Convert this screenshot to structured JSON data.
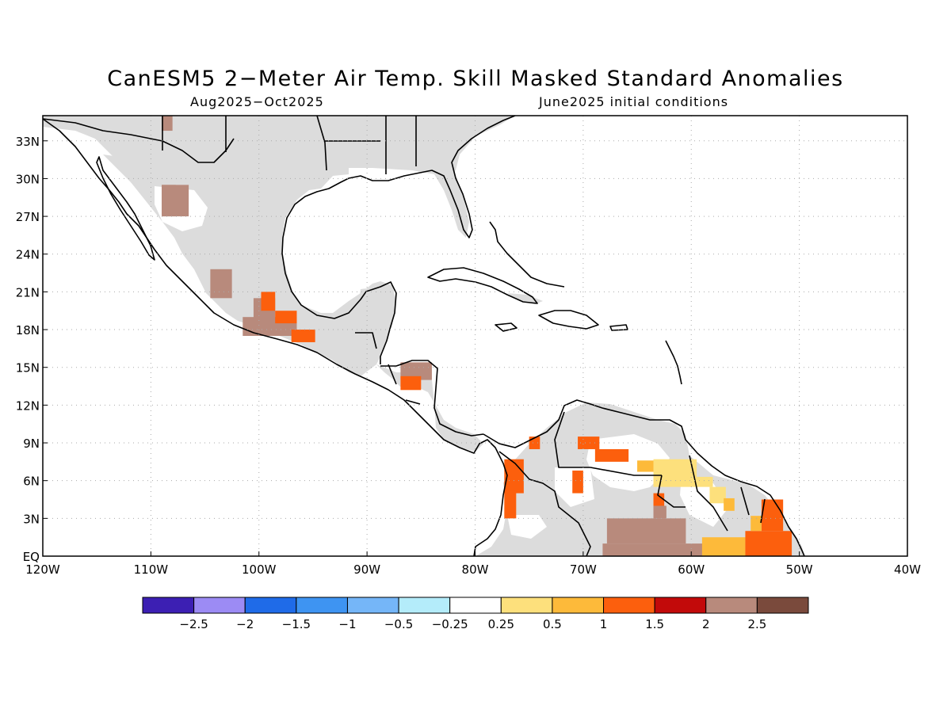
{
  "title": "CanESM5 2−Meter Air Temp. Skill Masked Standard Anomalies",
  "period": "Aug2025−Oct2025",
  "initial_conditions": "June2025 initial conditions",
  "map": {
    "lon_range": [
      -120,
      -40
    ],
    "lat_range": [
      0,
      35
    ],
    "lat_ticks": [
      {
        "value": 33,
        "label": "33N"
      },
      {
        "value": 30,
        "label": "30N"
      },
      {
        "value": 27,
        "label": "27N"
      },
      {
        "value": 24,
        "label": "24N"
      },
      {
        "value": 21,
        "label": "21N"
      },
      {
        "value": 18,
        "label": "18N"
      },
      {
        "value": 15,
        "label": "15N"
      },
      {
        "value": 12,
        "label": "12N"
      },
      {
        "value": 9,
        "label": "9N"
      },
      {
        "value": 6,
        "label": "6N"
      },
      {
        "value": 3,
        "label": "3N"
      },
      {
        "value": 0,
        "label": "EQ"
      }
    ],
    "lon_ticks": [
      {
        "value": -120,
        "label": "120W"
      },
      {
        "value": -110,
        "label": "110W"
      },
      {
        "value": -100,
        "label": "100W"
      },
      {
        "value": -90,
        "label": "90W"
      },
      {
        "value": -80,
        "label": "80W"
      },
      {
        "value": -70,
        "label": "70W"
      },
      {
        "value": -60,
        "label": "60W"
      },
      {
        "value": -50,
        "label": "50W"
      },
      {
        "value": -40,
        "label": "40W"
      }
    ],
    "masked_land_color": "#dcdcdc",
    "anomaly_patches": [
      {
        "lon": [
          -109,
          -108
        ],
        "lat": [
          33.8,
          35
        ],
        "value": 2.25
      },
      {
        "lon": [
          -109,
          -106.5
        ],
        "lat": [
          27,
          29.5
        ],
        "value": 2.0
      },
      {
        "lon": [
          -109,
          -107.7
        ],
        "lat": [
          27,
          29.5
        ],
        "value": 2.25
      },
      {
        "lon": [
          -104.5,
          -102.5
        ],
        "lat": [
          20.5,
          22.8
        ],
        "value": 2.0
      },
      {
        "lon": [
          -101.5,
          -96.5
        ],
        "lat": [
          17.5,
          19
        ],
        "value": 2.0
      },
      {
        "lon": [
          -100.5,
          -98.5
        ],
        "lat": [
          18.5,
          20.5
        ],
        "value": 2.0
      },
      {
        "lon": [
          -99.8,
          -98.5
        ],
        "lat": [
          19.5,
          21
        ],
        "value": 1.25
      },
      {
        "lon": [
          -98.5,
          -96.5
        ],
        "lat": [
          18.5,
          19.5
        ],
        "value": 1.25
      },
      {
        "lon": [
          -97,
          -94.8
        ],
        "lat": [
          17,
          18
        ],
        "value": 1.25
      },
      {
        "lon": [
          -86.9,
          -84
        ],
        "lat": [
          14,
          15.4
        ],
        "value": 2.0
      },
      {
        "lon": [
          -86.9,
          -85
        ],
        "lat": [
          13.2,
          14.3
        ],
        "value": 1.25
      },
      {
        "lon": [
          -75,
          -74
        ],
        "lat": [
          8.5,
          9.5
        ],
        "value": 1.25
      },
      {
        "lon": [
          -77.3,
          -75.5
        ],
        "lat": [
          5,
          7.7
        ],
        "value": 1.25
      },
      {
        "lon": [
          -77.3,
          -76.2
        ],
        "lat": [
          3,
          5.2
        ],
        "value": 1.25
      },
      {
        "lon": [
          -70.5,
          -68.5
        ],
        "lat": [
          8.5,
          9.5
        ],
        "value": 1.25
      },
      {
        "lon": [
          -68.9,
          -65.8
        ],
        "lat": [
          7.5,
          8.5
        ],
        "value": 1.25
      },
      {
        "lon": [
          -71,
          -70
        ],
        "lat": [
          5,
          6.8
        ],
        "value": 1.25
      },
      {
        "lon": [
          -65,
          -61.5
        ],
        "lat": [
          6.7,
          7.6
        ],
        "value": 0.75
      },
      {
        "lon": [
          -63.5,
          -59.5
        ],
        "lat": [
          5.5,
          7.7
        ],
        "value": 0.4
      },
      {
        "lon": [
          -59.5,
          -58
        ],
        "lat": [
          5.5,
          6.3
        ],
        "value": 0.4
      },
      {
        "lon": [
          -58.3,
          -56.8
        ],
        "lat": [
          4.2,
          5.5
        ],
        "value": 0.4
      },
      {
        "lon": [
          -57,
          -56
        ],
        "lat": [
          3.6,
          4.6
        ],
        "value": 0.75
      },
      {
        "lon": [
          -63.5,
          -62.5
        ],
        "lat": [
          3.8,
          5
        ],
        "value": 1.25
      },
      {
        "lon": [
          -67.8,
          -60.5
        ],
        "lat": [
          1,
          3
        ],
        "value": 2.0
      },
      {
        "lon": [
          -63.5,
          -62.3
        ],
        "lat": [
          3,
          4
        ],
        "value": 2.0
      },
      {
        "lon": [
          -68.2,
          -58
        ],
        "lat": [
          0,
          1
        ],
        "value": 2.0
      },
      {
        "lon": [
          -61.5,
          -60.5
        ],
        "lat": [
          0,
          0.8
        ],
        "value": 2.25
      },
      {
        "lon": [
          -59,
          -55
        ],
        "lat": [
          0,
          1.5
        ],
        "value": 0.75
      },
      {
        "lon": [
          -55,
          -50.7
        ],
        "lat": [
          0,
          2
        ],
        "value": 1.25
      },
      {
        "lon": [
          -53.5,
          -51.5
        ],
        "lat": [
          2,
          4.5
        ],
        "value": 1.25
      },
      {
        "lon": [
          -54.5,
          -53.5
        ],
        "lat": [
          2,
          3.2
        ],
        "value": 0.75
      }
    ]
  },
  "colorbar": {
    "colors": [
      "#3c1fb3",
      "#9c8bf4",
      "#1f6be8",
      "#3e94f2",
      "#75b6f8",
      "#b4ecfa",
      "#ffffff",
      "#fde07c",
      "#fdba3a",
      "#fc5f0d",
      "#c20a0a",
      "#b88a7c",
      "#7a4a3c"
    ],
    "labels": [
      "−2.5",
      "−2",
      "−1.5",
      "−1",
      "−0.5",
      "−0.25",
      "0.25",
      "0.5",
      "1",
      "1.5",
      "2",
      "2.5"
    ]
  }
}
